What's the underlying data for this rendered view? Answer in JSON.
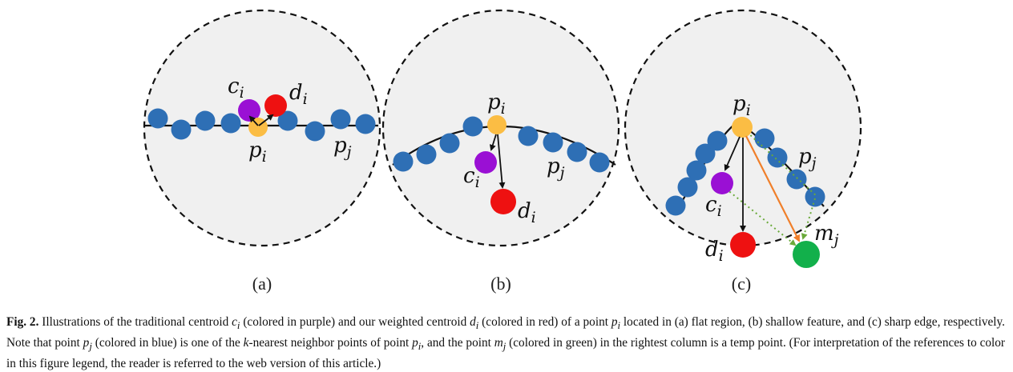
{
  "colors": {
    "circle_fill": "#f0f0f0",
    "blue_point": "#2e6fb5",
    "purple_centroid": "#9a10d4",
    "red_weighted": "#ee1111",
    "yellow_point": "#fbbd44",
    "green_temp": "#12b04b",
    "orange_arrow": "#f07f2a",
    "green_dotted": "#6aaa3a"
  },
  "panels": {
    "a": {
      "label": "(a)",
      "c": "c",
      "c_sub": "i",
      "d": "d",
      "d_sub": "i",
      "p": "p",
      "p_sub": "i",
      "pj": "p",
      "pj_sub": "j"
    },
    "b": {
      "label": "(b)",
      "c": "c",
      "c_sub": "i",
      "d": "d",
      "d_sub": "i",
      "p": "p",
      "p_sub": "i",
      "pj": "p",
      "pj_sub": "j"
    },
    "c": {
      "label": "(c)",
      "c": "c",
      "c_sub": "i",
      "d": "d",
      "d_sub": "i",
      "p": "p",
      "p_sub": "i",
      "pj": "p",
      "pj_sub": "j",
      "m": "m",
      "m_sub": "j"
    }
  },
  "caption": {
    "fig_label": "Fig. 2.",
    "t1": " Illustrations of the traditional centroid ",
    "c1": "c",
    "c1_sub": "i",
    "t2": " (colored in purple) and our weighted centroid ",
    "d1": "d",
    "d1_sub": "i",
    "t3": " (colored in red) of a point ",
    "p1": "p",
    "p1_sub": "i",
    "t4": " located in (a) flat region, (b) shallow feature, and (c) sharp edge, respectively. Note that point ",
    "p2": "p",
    "p2_sub": "j",
    "t5": " (colored in blue) is one of the ",
    "k": "k",
    "t6": "-nearest neighbor points of point ",
    "p3": "p",
    "p3_sub": "i",
    "t7": ", and the point ",
    "m1": "m",
    "m1_sub": "j",
    "t8": " (colored in green) in the rightest column is a temp point.  (For interpretation of the references to color in this figure legend, the reader is referred to the web version of this article.)"
  }
}
